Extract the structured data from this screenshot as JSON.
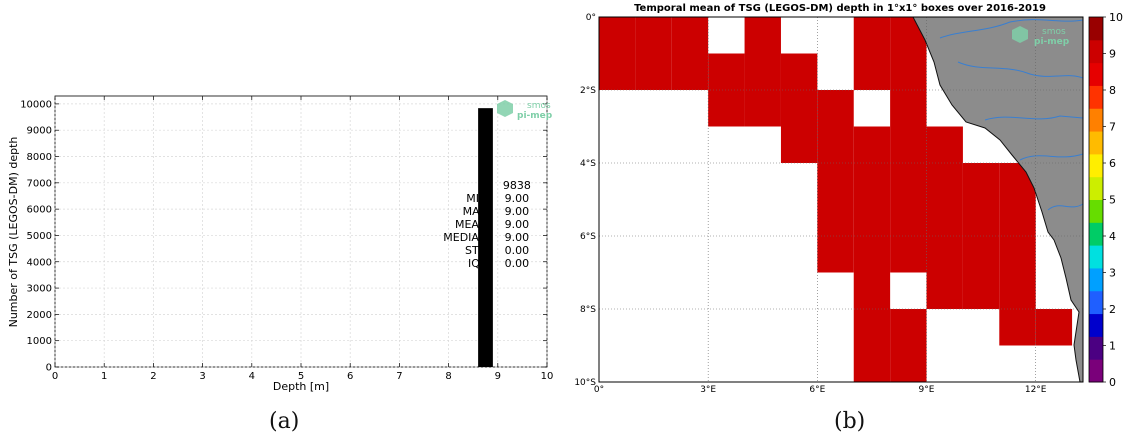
{
  "chart_data": [
    {
      "type": "bar",
      "panel_label": "(a)",
      "xlabel": "Depth [m]",
      "ylabel": "Number of TSG (LEGOS-DM) depth",
      "xlim": [
        0,
        10
      ],
      "ylim": [
        0,
        10300
      ],
      "x_ticks": [
        "0",
        "1",
        "2",
        "3",
        "4",
        "5",
        "6",
        "7",
        "8",
        "9",
        "10"
      ],
      "y_ticks": [
        "0",
        "1000",
        "2000",
        "3000",
        "4000",
        "5000",
        "6000",
        "7000",
        "8000",
        "9000",
        "10000"
      ],
      "grid": true,
      "bars": [
        {
          "x_start": 8.6,
          "x_end": 8.9,
          "value": 9838,
          "color": "#000000"
        }
      ],
      "stats": [
        {
          "label": "N",
          "value": "9838"
        },
        {
          "label": "MIN",
          "value": "9.00"
        },
        {
          "label": "MAX",
          "value": "9.00"
        },
        {
          "label": "MEAN",
          "value": "9.00"
        },
        {
          "label": "MEDIAN",
          "value": "9.00"
        },
        {
          "label": "STD",
          "value": "0.00"
        },
        {
          "label": "IQR",
          "value": "0.00"
        }
      ],
      "logo": [
        "smos",
        "pi-mep"
      ]
    },
    {
      "type": "heatmap",
      "panel_label": "(b)",
      "title": "Temporal mean of TSG (LEGOS-DM) depth in 1°x1° boxes over 2016-2019",
      "x_range": [
        0,
        13.3
      ],
      "y_range": [
        -10,
        0
      ],
      "x_ticks": [
        {
          "value": 0,
          "label": "0°"
        },
        {
          "value": 3,
          "label": "3°E"
        },
        {
          "value": 6,
          "label": "6°E"
        },
        {
          "value": 9,
          "label": "9°E"
        },
        {
          "value": 12,
          "label": "12°E"
        }
      ],
      "y_ticks": [
        {
          "value": 0,
          "label": "0°"
        },
        {
          "value": -2,
          "label": "2°S"
        },
        {
          "value": -4,
          "label": "4°S"
        },
        {
          "value": -6,
          "label": "6°S"
        },
        {
          "value": -8,
          "label": "8°S"
        },
        {
          "value": -10,
          "label": "10°S"
        }
      ],
      "cell_value": 9,
      "cell_color": "#cc0000",
      "cells": [
        [
          0,
          0
        ],
        [
          1,
          0
        ],
        [
          2,
          0
        ],
        [
          4,
          0
        ],
        [
          7,
          0
        ],
        [
          8,
          0
        ],
        [
          0,
          1
        ],
        [
          1,
          1
        ],
        [
          2,
          1
        ],
        [
          3,
          1
        ],
        [
          4,
          1
        ],
        [
          5,
          1
        ],
        [
          7,
          1
        ],
        [
          8,
          1
        ],
        [
          3,
          2
        ],
        [
          4,
          2
        ],
        [
          5,
          2
        ],
        [
          6,
          2
        ],
        [
          8,
          2
        ],
        [
          5,
          3
        ],
        [
          6,
          3
        ],
        [
          7,
          3
        ],
        [
          8,
          3
        ],
        [
          9,
          3
        ],
        [
          6,
          4
        ],
        [
          7,
          4
        ],
        [
          8,
          4
        ],
        [
          9,
          4
        ],
        [
          10,
          4
        ],
        [
          11,
          4
        ],
        [
          6,
          5
        ],
        [
          7,
          5
        ],
        [
          8,
          5
        ],
        [
          9,
          5
        ],
        [
          10,
          5
        ],
        [
          11,
          5
        ],
        [
          6,
          6
        ],
        [
          7,
          6
        ],
        [
          8,
          6
        ],
        [
          9,
          6
        ],
        [
          10,
          6
        ],
        [
          11,
          6
        ],
        [
          7,
          7
        ],
        [
          9,
          7
        ],
        [
          10,
          7
        ],
        [
          11,
          7
        ],
        [
          7,
          8
        ],
        [
          8,
          8
        ],
        [
          11,
          8
        ],
        [
          12,
          8
        ],
        [
          7,
          9
        ],
        [
          8,
          9
        ]
      ],
      "colorbar": {
        "min": 0,
        "max": 10,
        "ticks": [
          "0",
          "1",
          "2",
          "3",
          "4",
          "5",
          "6",
          "7",
          "8",
          "9",
          "10"
        ],
        "colors": [
          "#7a007a",
          "#4b0082",
          "#0000cc",
          "#1f5fff",
          "#00a0ff",
          "#00e0e0",
          "#00cc66",
          "#66dd00",
          "#ccee00",
          "#ffee00",
          "#ffbb00",
          "#ff8000",
          "#ff3300",
          "#e60000",
          "#cc0000",
          "#990000"
        ]
      },
      "logo": [
        "smos",
        "pi-mep"
      ]
    }
  ]
}
